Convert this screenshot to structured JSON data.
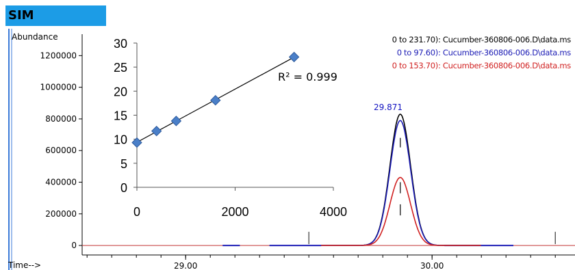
{
  "badge": "SIM",
  "chart_data": [
    {
      "type": "line",
      "ylabel": "Abundance",
      "xlabel": "Time-->",
      "x_ticks": [
        29.0,
        30.0
      ],
      "x_tick_labels": [
        "29.00",
        "30.00"
      ],
      "xlim": [
        28.58,
        30.58
      ],
      "y_ticks": [
        0,
        200000,
        400000,
        600000,
        800000,
        1000000,
        1200000
      ],
      "y_tick_labels": [
        "0",
        "200000",
        "400000",
        "600000",
        "800000",
        "1000000",
        "1200000"
      ],
      "ylim": [
        -60000,
        1370000
      ],
      "peak_label": "29.871",
      "series": [
        {
          "name": "0 to 231.70): Cucumber-360806-006.D\\data.ms",
          "color": "#000000",
          "peak_x": 29.871,
          "peak_y": 830000,
          "sigma": 0.042
        },
        {
          "name": "0 to 97.60): Cucumber-360806-006.D\\data.ms",
          "color": "#1a1ab4",
          "peak_x": 29.871,
          "peak_y": 790000,
          "sigma": 0.042
        },
        {
          "name": "0 to 153.70): Cucumber-360806-006.D\\data.ms",
          "color": "#d02020",
          "peak_x": 29.871,
          "peak_y": 430000,
          "sigma": 0.042
        }
      ]
    },
    {
      "type": "scatter",
      "x": [
        0,
        400,
        800,
        1600,
        3200
      ],
      "y": [
        9.3,
        11.7,
        13.8,
        18.1,
        27.1
      ],
      "x_ticks": [
        0,
        2000,
        4000
      ],
      "x_tick_labels": [
        "0",
        "2000",
        "4000"
      ],
      "y_ticks": [
        0,
        5,
        10,
        15,
        20,
        25,
        30
      ],
      "y_tick_labels": [
        "0",
        "5",
        "10",
        "15",
        "20",
        "25",
        "30"
      ],
      "xlim": [
        0,
        4000
      ],
      "ylim": [
        0,
        30
      ],
      "trendline": "linear",
      "annotation": "R² = 0.999",
      "marker_color": "#4a7fc8"
    }
  ]
}
